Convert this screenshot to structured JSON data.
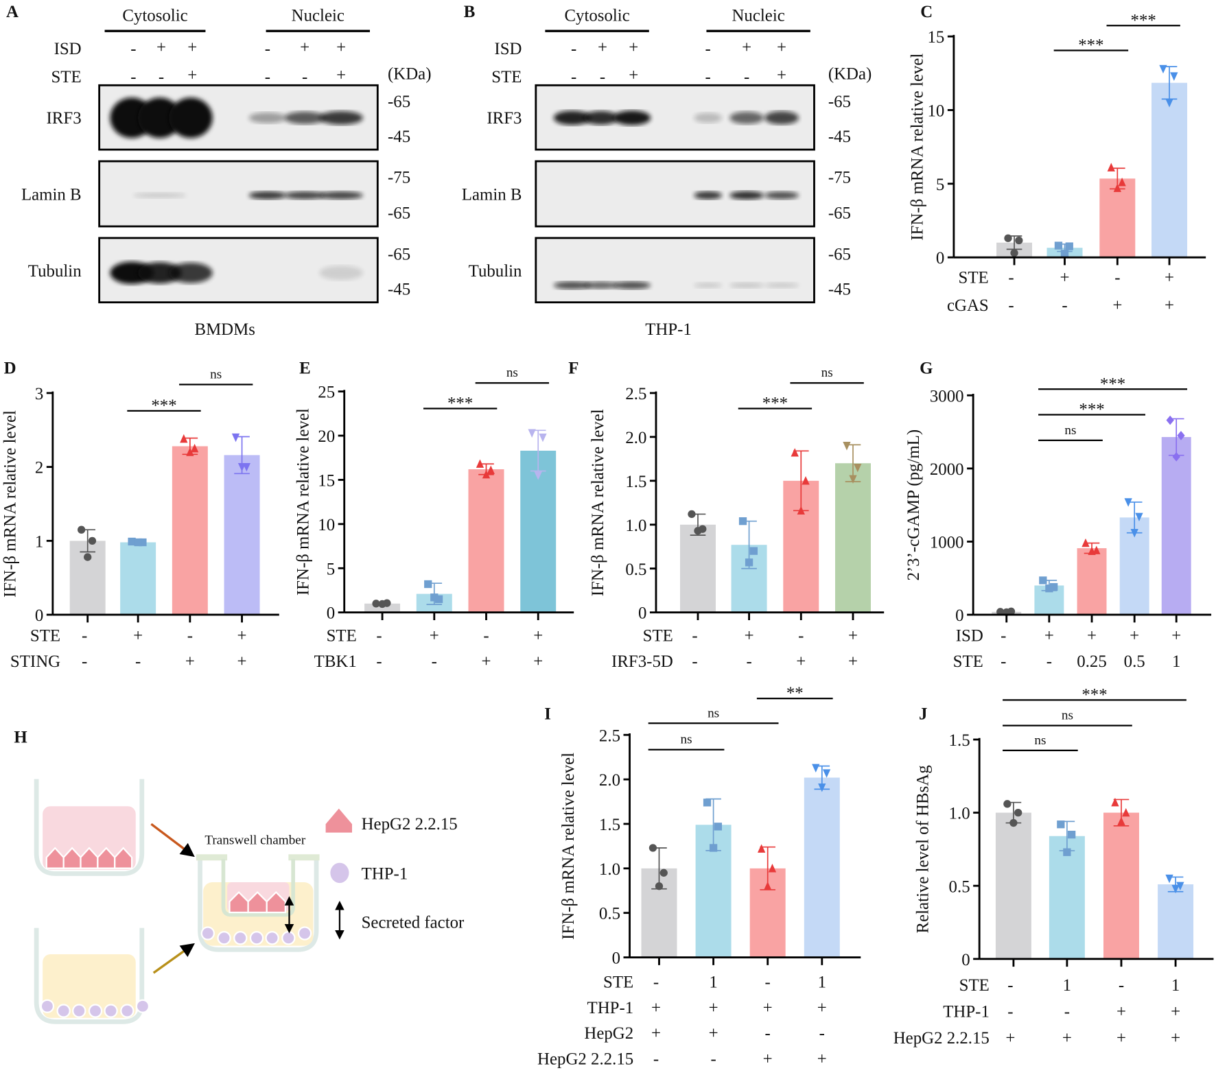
{
  "panel_letters": [
    "A",
    "B",
    "C",
    "D",
    "E",
    "F",
    "G",
    "H",
    "I",
    "J"
  ],
  "blots": [
    {
      "cell_line": "BMDMs",
      "fractions": [
        "Cytosolic",
        "Nucleic"
      ],
      "row_labels": [
        "ISD",
        "STE"
      ],
      "conditions": {
        "ISD": [
          "-",
          "+",
          "+",
          "-",
          "+",
          "+"
        ],
        "STE": [
          "-",
          "-",
          "+",
          "-",
          "-",
          "+"
        ]
      },
      "kda_label": "(KDa)",
      "proteins": [
        {
          "name": "IRF3",
          "markers": [
            "-65",
            "-45"
          ]
        },
        {
          "name": "Lamin B",
          "markers": [
            "-75",
            "-65"
          ]
        },
        {
          "name": "Tubulin",
          "markers": [
            "-65",
            "-45"
          ]
        }
      ]
    },
    {
      "cell_line": "THP-1",
      "fractions": [
        "Cytosolic",
        "Nucleic"
      ],
      "row_labels": [
        "ISD",
        "STE"
      ],
      "conditions": {
        "ISD": [
          "-",
          "+",
          "+",
          "-",
          "+",
          "+"
        ],
        "STE": [
          "-",
          "-",
          "+",
          "-",
          "-",
          "+"
        ]
      },
      "kda_label": "(KDa)",
      "proteins": [
        {
          "name": "IRF3",
          "markers": [
            "-65",
            "-45"
          ]
        },
        {
          "name": "Lamin B",
          "markers": [
            "-75",
            "-65"
          ]
        },
        {
          "name": "Tubulin",
          "markers": [
            "-65",
            "-45"
          ]
        }
      ]
    }
  ],
  "diagram": {
    "chamber_label": "Transwell chamber",
    "legend": [
      "HepG2 2.2.15",
      "THP-1",
      "Secreted factor"
    ],
    "colors": {
      "hepg2": "#ee919b",
      "thp1": "#d5c5ea",
      "upper_medium": "#f9d9df",
      "lower_medium": "#fdf0cc"
    }
  },
  "chart_data": [
    {
      "panel": "C",
      "type": "bar",
      "ylabel": "IFN-β mRNA relative level",
      "ylim": [
        0,
        15
      ],
      "yticks": [
        "0",
        "5",
        "10",
        "15"
      ],
      "values": [
        1.0,
        0.65,
        5.35,
        11.85
      ],
      "errors": [
        0.45,
        0.25,
        0.7,
        1.1
      ],
      "points": [
        [
          1.3,
          1.15,
          0.3
        ],
        [
          0.8,
          0.75,
          0.25
        ],
        [
          6.1,
          5.1,
          4.7
        ],
        [
          12.8,
          12.3,
          10.5
        ]
      ],
      "colors": [
        "#d4d4d6",
        "#acdcea",
        "#f9a3a3",
        "#c4d9f6"
      ],
      "point_colors": [
        "#555555",
        "#6f9fd0",
        "#e83a3a",
        "#4a90e8"
      ],
      "rows": [
        {
          "label": "STE",
          "values": [
            "-",
            "+",
            "-",
            "+"
          ]
        },
        {
          "label": "cGAS",
          "values": [
            "-",
            "-",
            "+",
            "+"
          ]
        }
      ],
      "significance": [
        {
          "groups": [
            1,
            2
          ],
          "label": "***"
        },
        {
          "groups": [
            2,
            3
          ],
          "label": "***"
        }
      ]
    },
    {
      "panel": "D",
      "type": "bar",
      "ylabel": "IFN-β mRNA relative level",
      "ylim": [
        0,
        3
      ],
      "yticks": [
        "0",
        "1",
        "2",
        "3"
      ],
      "values": [
        1.0,
        0.98,
        2.28,
        2.16
      ],
      "errors": [
        0.15,
        0.02,
        0.11,
        0.25
      ],
      "points": [
        [
          1.15,
          1.0,
          0.78
        ],
        [
          0.99,
          0.98,
          0.98
        ],
        [
          2.38,
          2.25,
          2.2
        ],
        [
          2.4,
          2.0,
          2.0
        ]
      ],
      "colors": [
        "#d4d4d6",
        "#acdcea",
        "#f9a3a3",
        "#bcbcf6"
      ],
      "point_colors": [
        "#555555",
        "#6f9fd0",
        "#e83a3a",
        "#7c74f0"
      ],
      "rows": [
        {
          "label": "STE",
          "values": [
            "-",
            "+",
            "-",
            "+"
          ]
        },
        {
          "label": "STING",
          "values": [
            "-",
            "-",
            "+",
            "+"
          ]
        }
      ],
      "significance": [
        {
          "groups": [
            1,
            2
          ],
          "label": "***"
        },
        {
          "groups": [
            2,
            3
          ],
          "label": "ns"
        }
      ]
    },
    {
      "panel": "E",
      "type": "bar",
      "ylabel": "IFN-β mRNA relative level",
      "ylim": [
        0,
        25
      ],
      "yticks": [
        "0",
        "5",
        "10",
        "15",
        "20",
        "25"
      ],
      "values": [
        1.0,
        2.1,
        16.2,
        18.3
      ],
      "errors": [
        0.1,
        1.2,
        0.6,
        2.3
      ],
      "points": [
        [
          1.0,
          1.05,
          0.95
        ],
        [
          3.2,
          1.5,
          1.7
        ],
        [
          16.8,
          16.1,
          15.6
        ],
        [
          20.3,
          19.8,
          15.5
        ]
      ],
      "colors": [
        "#d4d4d6",
        "#acdcea",
        "#f9a3a3",
        "#7ec4d8"
      ],
      "point_colors": [
        "#555555",
        "#6f9fd0",
        "#e83a3a",
        "#b8b4ee"
      ],
      "rows": [
        {
          "label": "STE",
          "values": [
            "-",
            "+",
            "-",
            "+"
          ]
        },
        {
          "label": "TBK1",
          "values": [
            "-",
            "-",
            "+",
            "+"
          ]
        }
      ],
      "significance": [
        {
          "groups": [
            1,
            2
          ],
          "label": "***"
        },
        {
          "groups": [
            2,
            3
          ],
          "label": "ns"
        }
      ]
    },
    {
      "panel": "F",
      "type": "bar",
      "ylabel": "IFN-β mRNA relative level",
      "ylim": [
        0,
        2.5
      ],
      "yticks": [
        "0",
        "0.5",
        "1.0",
        "1.5",
        "2.0",
        "2.5"
      ],
      "values": [
        1.0,
        0.77,
        1.5,
        1.7
      ],
      "errors": [
        0.12,
        0.27,
        0.34,
        0.21
      ],
      "points": [
        [
          1.12,
          0.95,
          0.93
        ],
        [
          1.04,
          0.7,
          0.57
        ],
        [
          1.82,
          1.5,
          1.16
        ],
        [
          1.9,
          1.65,
          1.52
        ]
      ],
      "colors": [
        "#d4d4d6",
        "#acdcea",
        "#f9a3a3",
        "#b5d1aa"
      ],
      "point_colors": [
        "#555555",
        "#6f9fd0",
        "#e83a3a",
        "#a89060"
      ],
      "rows": [
        {
          "label": "STE",
          "values": [
            "-",
            "+",
            "-",
            "+"
          ]
        },
        {
          "label": "IRF3-5D",
          "values": [
            "-",
            "-",
            "+",
            "+"
          ]
        }
      ],
      "significance": [
        {
          "groups": [
            1,
            2
          ],
          "label": "***"
        },
        {
          "groups": [
            2,
            3
          ],
          "label": "ns"
        }
      ]
    },
    {
      "panel": "G",
      "type": "bar",
      "ylabel": "2’3’-cGAMP (pg/mL)",
      "ylim": [
        0,
        3000
      ],
      "yticks": [
        "0",
        "1000",
        "2000",
        "3000"
      ],
      "values": [
        40,
        400,
        910,
        1330,
        2430
      ],
      "errors": [
        15,
        70,
        70,
        210,
        250
      ],
      "points": [
        [
          40,
          45,
          35
        ],
        [
          470,
          380,
          360
        ],
        [
          980,
          880,
          870
        ],
        [
          1540,
          1340,
          1120
        ],
        [
          2660,
          2450,
          2160
        ]
      ],
      "colors": [
        "#d4d4d6",
        "#acdcea",
        "#f9a3a3",
        "#c4d9f6",
        "#b7acf2"
      ],
      "point_colors": [
        "#555555",
        "#6f9fd0",
        "#e83a3a",
        "#4a90e8",
        "#8a70f0"
      ],
      "rows": [
        {
          "label": "ISD",
          "values": [
            "-",
            "+",
            "+",
            "+",
            "+"
          ]
        },
        {
          "label": "STE",
          "values": [
            "-",
            "-",
            "0.25",
            "0.5",
            "1"
          ]
        }
      ],
      "significance": [
        {
          "groups": [
            1,
            2
          ],
          "label": "ns"
        },
        {
          "groups": [
            1,
            3
          ],
          "label": "***"
        },
        {
          "groups": [
            1,
            4
          ],
          "label": "***"
        }
      ]
    },
    {
      "panel": "I",
      "type": "bar",
      "ylabel": "IFN-β mRNA relative level",
      "ylim": [
        0,
        2.5
      ],
      "yticks": [
        "0",
        "0.5",
        "1.0",
        "1.5",
        "2.0",
        "2.5"
      ],
      "values": [
        1.0,
        1.49,
        1.0,
        2.02
      ],
      "errors": [
        0.23,
        0.29,
        0.24,
        0.13
      ],
      "points": [
        [
          1.23,
          0.95,
          0.8
        ],
        [
          1.74,
          1.47,
          1.23
        ],
        [
          1.22,
          1.0,
          0.8
        ],
        [
          2.13,
          2.07,
          1.91
        ]
      ],
      "colors": [
        "#d4d4d6",
        "#acdcea",
        "#f9a3a3",
        "#c4d9f6"
      ],
      "point_colors": [
        "#555555",
        "#6f9fd0",
        "#e83a3a",
        "#4a90e8"
      ],
      "rows": [
        {
          "label": "STE",
          "values": [
            "-",
            "1",
            "-",
            "1"
          ]
        },
        {
          "label": "THP-1",
          "values": [
            "+",
            "+",
            "+",
            "+"
          ]
        },
        {
          "label": "HepG2",
          "values": [
            "+",
            "+",
            "-",
            "-"
          ]
        },
        {
          "label": "HepG2 2.2.15",
          "values": [
            "-",
            "-",
            "+",
            "+"
          ]
        }
      ],
      "significance": [
        {
          "groups": [
            0,
            1
          ],
          "label": "ns"
        },
        {
          "groups": [
            0,
            2
          ],
          "label": "ns"
        },
        {
          "groups": [
            2,
            3
          ],
          "label": "**"
        }
      ]
    },
    {
      "panel": "J",
      "type": "bar",
      "ylabel": "Relative level of HBsAg",
      "ylim": [
        0,
        1.5
      ],
      "yticks": [
        "0",
        "0.5",
        "1.0",
        "1.5"
      ],
      "values": [
        1.0,
        0.84,
        1.0,
        0.51
      ],
      "errors": [
        0.07,
        0.1,
        0.09,
        0.05
      ],
      "points": [
        [
          1.06,
          1.0,
          0.93
        ],
        [
          0.92,
          0.85,
          0.73
        ],
        [
          1.07,
          1.0,
          0.94
        ],
        [
          0.55,
          0.5,
          0.48
        ]
      ],
      "colors": [
        "#d4d4d6",
        "#acdcea",
        "#f9a3a3",
        "#c4d9f6"
      ],
      "point_colors": [
        "#555555",
        "#6f9fd0",
        "#e83a3a",
        "#4a90e8"
      ],
      "rows": [
        {
          "label": "STE",
          "values": [
            "-",
            "1",
            "-",
            "1"
          ]
        },
        {
          "label": "THP-1",
          "values": [
            "-",
            "-",
            "+",
            "+"
          ]
        },
        {
          "label": "HepG2 2.2.15",
          "values": [
            "+",
            "+",
            "+",
            "+"
          ]
        }
      ],
      "significance": [
        {
          "groups": [
            0,
            1
          ],
          "label": "ns"
        },
        {
          "groups": [
            0,
            2
          ],
          "label": "ns"
        },
        {
          "groups": [
            0,
            3
          ],
          "label": "***"
        }
      ]
    }
  ]
}
